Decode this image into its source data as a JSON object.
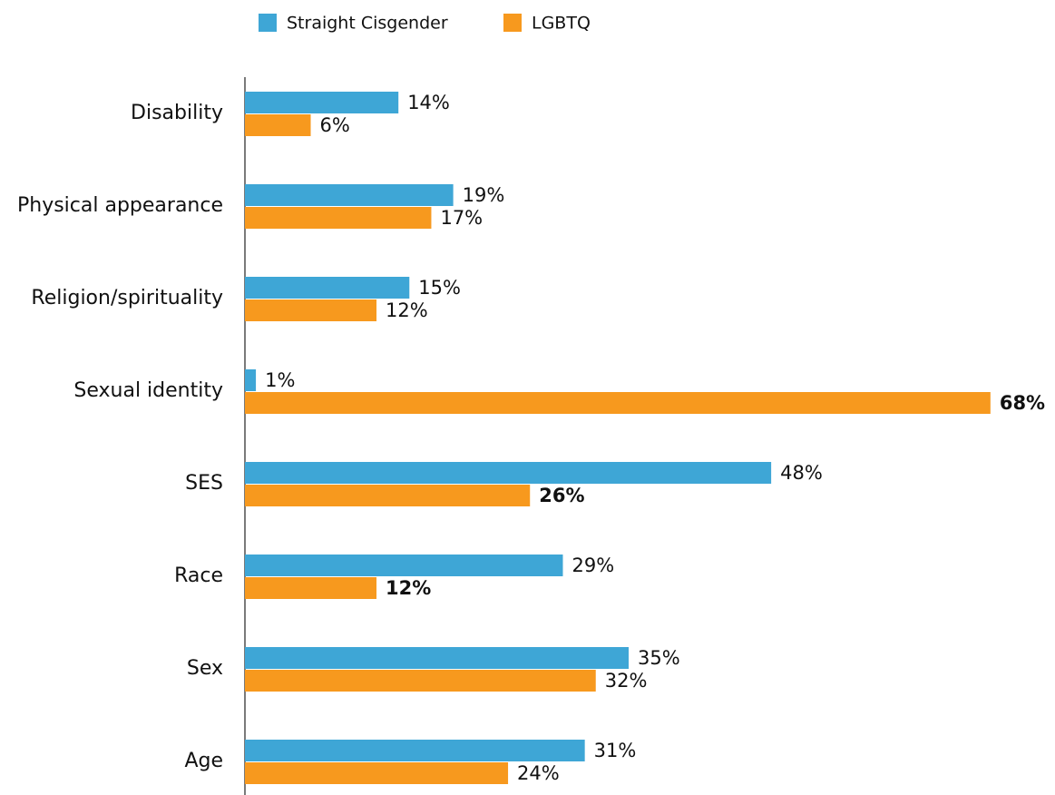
{
  "chart_data": {
    "type": "hbar",
    "categories": [
      "Disability",
      "Physical appearance",
      "Religion/spirituality",
      "Sexual identity",
      "SES",
      "Race",
      "Sex",
      "Age"
    ],
    "series": [
      {
        "name": "Straight Cisgender",
        "color": "#3ea6d6",
        "values": [
          14,
          19,
          15,
          1,
          48,
          29,
          35,
          31
        ],
        "value_labels": [
          "14%",
          "19%",
          "15%",
          "1%",
          "48%",
          "29%",
          "35%",
          "31%"
        ],
        "bold": [
          false,
          false,
          false,
          false,
          false,
          false,
          false,
          false
        ]
      },
      {
        "name": "LGBTQ",
        "color": "#f7991e",
        "values": [
          6,
          17,
          12,
          68,
          26,
          12,
          32,
          24
        ],
        "value_labels": [
          "6%",
          "17%",
          "12%",
          "68%",
          "26%",
          "12%",
          "32%",
          "24%"
        ],
        "bold": [
          false,
          false,
          false,
          true,
          true,
          true,
          false,
          false
        ]
      }
    ],
    "xlim": [
      0,
      70
    ],
    "legend": "top"
  }
}
